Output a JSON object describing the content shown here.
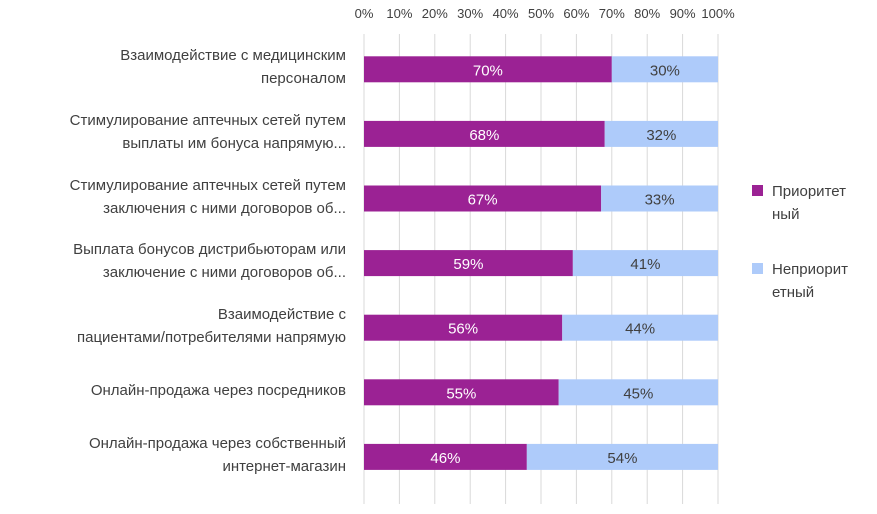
{
  "chart_data": {
    "type": "bar",
    "orientation": "horizontal",
    "stacked": "percent",
    "categories": [
      "Взаимодействие с медицинским\nперсоналом",
      "Стимулирование аптечных сетей путем\nвыплаты им бонуса напрямую...",
      "Стимулирование аптечных сетей путем\nзаключения с ними договоров об...",
      "Выплата бонусов дистрибьюторам или\nзаключение с ними договоров об...",
      "Взаимодействие с\nпациентами/потребителями напрямую",
      "Онлайн-продажа через посредников",
      "Онлайн-продажа через собственный\nинтернет-магазин"
    ],
    "series": [
      {
        "name": "Приоритет\nный",
        "color": "#9b2294",
        "values": [
          70,
          68,
          67,
          59,
          56,
          55,
          46
        ],
        "labels": [
          "70%",
          "68%",
          "67%",
          "59%",
          "56%",
          "55%",
          "46%"
        ],
        "label_color": "#ffffff"
      },
      {
        "name": "Неприорит\nетный",
        "color": "#aecbfa",
        "values": [
          30,
          32,
          33,
          41,
          44,
          45,
          54
        ],
        "labels": [
          "30%",
          "32%",
          "33%",
          "41%",
          "44%",
          "45%",
          "54%"
        ],
        "label_color": "#404040"
      }
    ],
    "xlim": [
      0,
      100
    ],
    "x_ticks": [
      0,
      10,
      20,
      30,
      40,
      50,
      60,
      70,
      80,
      90,
      100
    ],
    "x_tick_labels": [
      "0%",
      "10%",
      "20%",
      "30%",
      "40%",
      "50%",
      "60%",
      "70%",
      "80%",
      "90%",
      "100%"
    ],
    "x_axis_position": "top",
    "grid": true,
    "legend_position": "right",
    "title": "",
    "xlabel": "",
    "ylabel": ""
  }
}
